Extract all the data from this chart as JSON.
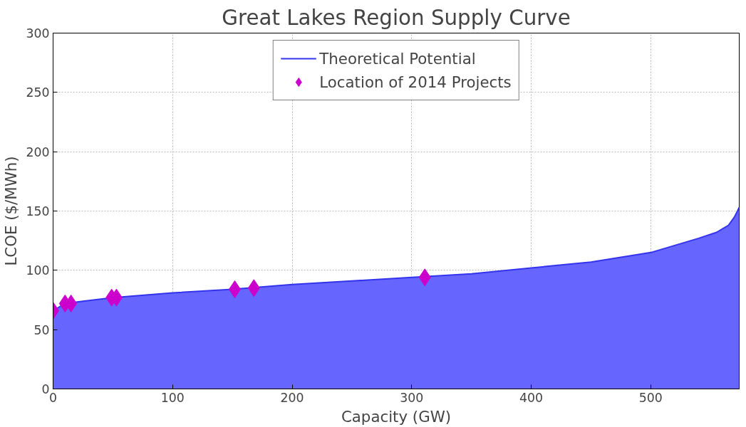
{
  "chart_data": {
    "type": "area",
    "title": "Great Lakes Region Supply Curve",
    "xlabel": "Capacity (GW)",
    "ylabel": "LCOE ($/MWh)",
    "xlim": [
      0,
      574
    ],
    "ylim": [
      0,
      300
    ],
    "xticks": [
      0,
      100,
      200,
      300,
      400,
      500
    ],
    "yticks": [
      0,
      50,
      100,
      150,
      200,
      250,
      300
    ],
    "grid": true,
    "legend": "top",
    "series": [
      {
        "name": "Theoretical Potential",
        "color": "#6666ff",
        "x": [
          0,
          10,
          25,
          50,
          100,
          150,
          200,
          250,
          300,
          350,
          400,
          450,
          500,
          520,
          540,
          555,
          565,
          570,
          574
        ],
        "values": [
          66,
          72,
          74,
          77,
          81,
          84,
          88,
          91,
          94,
          97,
          102,
          107,
          115,
          121,
          127,
          132,
          138,
          145,
          153
        ]
      },
      {
        "name": "Location of 2014 Projects",
        "type": "scatter",
        "color": "#cc00cc",
        "marker": "diamond",
        "x": [
          0,
          10,
          15,
          49,
          53,
          152,
          168,
          311
        ],
        "values": [
          66,
          72,
          72,
          77,
          77,
          84,
          85,
          94
        ]
      }
    ]
  }
}
